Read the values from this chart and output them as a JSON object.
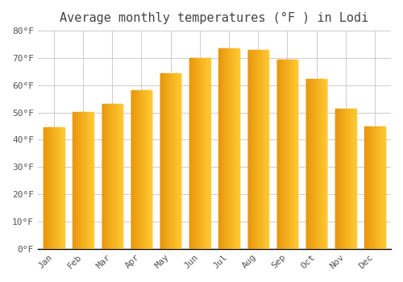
{
  "title": "Average monthly temperatures (°F ) in Lodi",
  "months": [
    "Jan",
    "Feb",
    "Mar",
    "Apr",
    "May",
    "Jun",
    "Jul",
    "Aug",
    "Sep",
    "Oct",
    "Nov",
    "Dec"
  ],
  "values": [
    44.5,
    50.2,
    53.0,
    58.2,
    64.5,
    70.0,
    73.5,
    73.0,
    69.5,
    62.3,
    51.5,
    45.0
  ],
  "bar_color_left": "#E8960C",
  "bar_color_right": "#FFC832",
  "ylim": [
    0,
    80
  ],
  "yticks": [
    0,
    10,
    20,
    30,
    40,
    50,
    60,
    70,
    80
  ],
  "ytick_labels": [
    "0°F",
    "10°F",
    "20°F",
    "30°F",
    "40°F",
    "50°F",
    "60°F",
    "70°F",
    "80°F"
  ],
  "background_color": "#FFFFFF",
  "grid_color": "#CCCCCC",
  "title_fontsize": 11,
  "tick_fontsize": 8,
  "bar_width": 0.7
}
